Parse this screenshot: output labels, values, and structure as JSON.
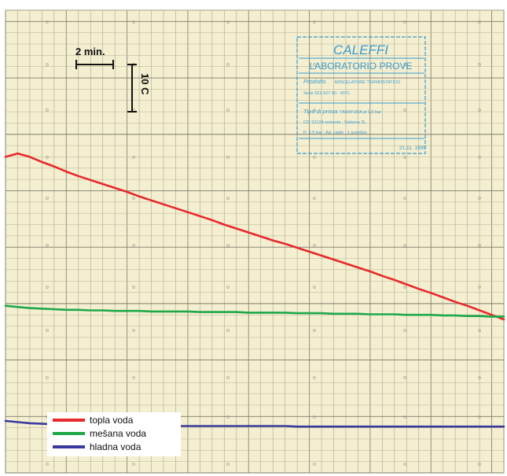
{
  "chart_data": {
    "type": "line",
    "x_unit": "min",
    "y_unit": "°C",
    "x": [
      0,
      1,
      2,
      3,
      4,
      5,
      6,
      7,
      8,
      9,
      10,
      11,
      12,
      13,
      14,
      15,
      16,
      17,
      18,
      19,
      20,
      21,
      22,
      23,
      24,
      25,
      26,
      27,
      28,
      29,
      30,
      31,
      32,
      33,
      34,
      35,
      36,
      37,
      38,
      39,
      40,
      41
    ],
    "series": [
      {
        "name": "topla voda",
        "color": "#e8282b",
        "values": [
          56.0,
          56.6,
          56.0,
          55.1,
          54.3,
          53.4,
          52.6,
          51.9,
          51.2,
          50.5,
          49.8,
          49.0,
          48.3,
          47.6,
          46.9,
          46.2,
          45.5,
          44.8,
          44.0,
          43.3,
          42.6,
          41.9,
          41.2,
          40.6,
          39.9,
          39.2,
          38.5,
          37.8,
          37.1,
          36.4,
          35.7,
          34.9,
          34.2,
          33.4,
          32.6,
          31.9,
          31.1,
          30.3,
          29.6,
          28.8,
          28.0,
          27.2
        ]
      },
      {
        "name": "mešana voda",
        "color": "#1ea84a",
        "values": [
          29.6,
          29.4,
          29.2,
          29.1,
          29.0,
          28.9,
          28.9,
          28.8,
          28.8,
          28.7,
          28.7,
          28.7,
          28.6,
          28.6,
          28.6,
          28.6,
          28.5,
          28.5,
          28.5,
          28.5,
          28.4,
          28.4,
          28.4,
          28.4,
          28.3,
          28.3,
          28.3,
          28.2,
          28.2,
          28.2,
          28.1,
          28.1,
          28.1,
          28.0,
          28.0,
          28.0,
          27.9,
          27.9,
          27.8,
          27.8,
          27.7,
          27.7
        ]
      },
      {
        "name": "hladna voda",
        "color": "#3a3a9c",
        "values": [
          9.2,
          9.0,
          8.8,
          8.7,
          8.6,
          8.6,
          8.5,
          8.5,
          8.5,
          8.4,
          8.4,
          8.4,
          8.4,
          8.4,
          8.3,
          8.3,
          8.3,
          8.3,
          8.3,
          8.3,
          8.3,
          8.3,
          8.3,
          8.3,
          8.2,
          8.2,
          8.2,
          8.2,
          8.2,
          8.2,
          8.2,
          8.2,
          8.2,
          8.2,
          8.2,
          8.2,
          8.2,
          8.2,
          8.2,
          8.2,
          8.2,
          8.2
        ]
      }
    ],
    "xlim": [
      0,
      41
    ],
    "ylim": [
      0,
      82
    ],
    "grid": true,
    "legend_position": "bottom-left",
    "scale_bar_x": {
      "label": "2 min.",
      "value": 2
    },
    "scale_bar_y": {
      "label": "10 C",
      "value": 10
    },
    "legend": {
      "entries": [
        "topla voda",
        "mešana voda",
        "hladna voda"
      ]
    }
  },
  "stamp": {
    "brand": "CALEFFI",
    "title": "LABORATORIO PROVE",
    "prodotto_label": "Prodotto",
    "prodotto_value": "MISCELATORE TERMOSTATICO",
    "row2": "Serie 521    527        50 - 65°C",
    "tipo_label": "Tipo di prova",
    "tipo_value": "TARATURA al 1,5 bar",
    "row4": "CF: 52124 entrante ; Sistema 3L",
    "row5": "P: 1,5 bar ;  Ad. caldo ; 1 scambio",
    "date": "21.11. 1995"
  },
  "colors": {
    "paper": "#f4efd0",
    "grid_major": "#7e7a6a",
    "grid_minor": "#c9c2a0",
    "stamp": "#3a9bd0"
  }
}
